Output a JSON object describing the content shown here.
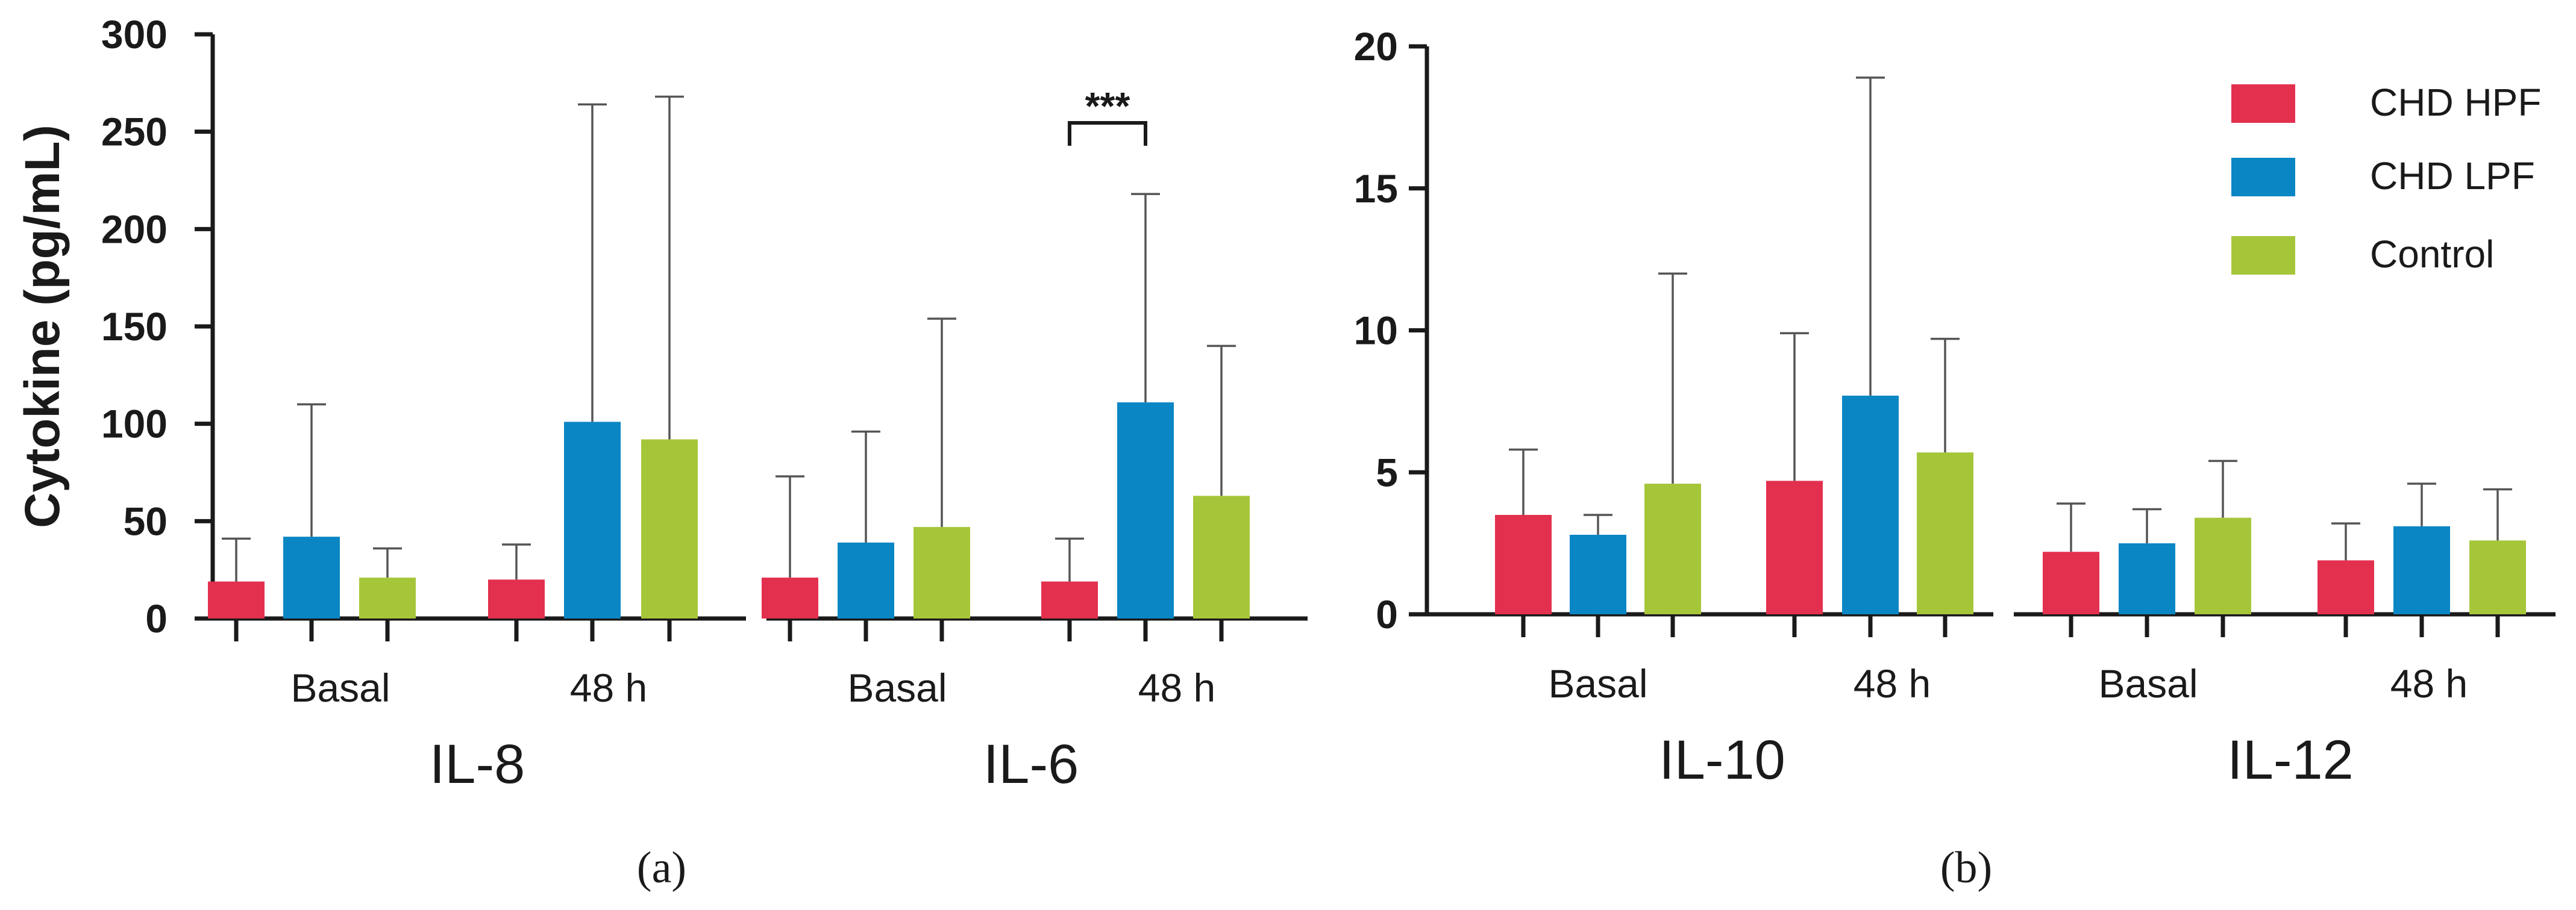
{
  "chart_data": [
    {
      "type": "bar",
      "panel_label": "(a)",
      "ylabel": "Cytokine (pg/mL)",
      "ylim": [
        0,
        300
      ],
      "yticks": [
        "0",
        "50",
        "100",
        "150",
        "200",
        "250",
        "300"
      ],
      "groups": [
        {
          "name": "IL-8",
          "timepoints": [
            {
              "label": "Basal",
              "values": [
                19,
                42,
                21
              ],
              "errors": [
                41,
                110,
                36
              ]
            },
            {
              "label": "48 h",
              "values": [
                20,
                101,
                92
              ],
              "errors": [
                38,
                264,
                268
              ]
            }
          ]
        },
        {
          "name": "IL-6",
          "timepoints": [
            {
              "label": "Basal",
              "values": [
                21,
                39,
                47
              ],
              "errors": [
                73,
                96,
                154
              ]
            },
            {
              "label": "48 h",
              "values": [
                19,
                111,
                63
              ],
              "errors": [
                41,
                218,
                140
              ]
            }
          ]
        }
      ],
      "annotation": {
        "text": "***",
        "group": 1,
        "timepoint": 1,
        "between": [
          0,
          1
        ]
      }
    },
    {
      "type": "bar",
      "panel_label": "(b)",
      "ylabel": "",
      "ylim": [
        0,
        20
      ],
      "yticks": [
        "0",
        "5",
        "10",
        "15",
        "20"
      ],
      "groups": [
        {
          "name": "IL-10",
          "timepoints": [
            {
              "label": "Basal",
              "values": [
                3.5,
                2.8,
                4.6
              ],
              "errors": [
                5.8,
                3.5,
                12.0
              ]
            },
            {
              "label": "48 h",
              "values": [
                4.7,
                7.7,
                5.7
              ],
              "errors": [
                9.9,
                18.9,
                9.7
              ]
            }
          ]
        },
        {
          "name": "IL-12",
          "timepoints": [
            {
              "label": "Basal",
              "values": [
                2.2,
                2.5,
                3.4
              ],
              "errors": [
                3.9,
                3.7,
                5.4
              ]
            },
            {
              "label": "48 h",
              "values": [
                1.9,
                3.1,
                2.6
              ],
              "errors": [
                3.2,
                4.6,
                4.4
              ]
            }
          ]
        }
      ]
    }
  ],
  "legend": [
    {
      "name": "CHD HPF",
      "color": "#E3304F"
    },
    {
      "name": "CHD LPF",
      "color": "#0A86C4"
    },
    {
      "name": "Control",
      "color": "#A6C63A"
    }
  ]
}
